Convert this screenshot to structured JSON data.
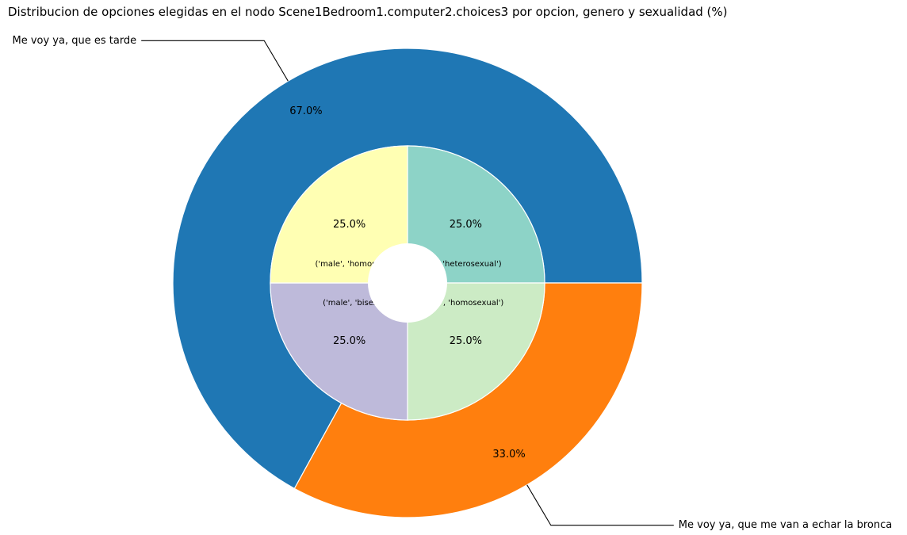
{
  "chart_data": {
    "type": "pie",
    "title": "Distribucion de opciones elegidas en el nodo Scene1Bedroom1.computer2.choices3 por opcion, genero y sexualidad (%)",
    "outer": {
      "slices": [
        {
          "label": "Me voy ya, que es tarde",
          "value": 67.0,
          "pct_label": "67.0%",
          "color": "#1f77b4"
        },
        {
          "label": "Me voy ya, que me van a echar la bronca",
          "value": 33.0,
          "pct_label": "33.0%",
          "color": "#ff7f0e"
        }
      ]
    },
    "inner": {
      "slices": [
        {
          "label": "('male', 'heterosexual')",
          "value": 25.0,
          "pct_label": "25.0%",
          "color": "#8dd3c7"
        },
        {
          "label": "('female', 'homosexual')",
          "value": 25.0,
          "pct_label": "25.0%",
          "color": "#ccebc5"
        },
        {
          "label": "('male', 'bisexual')",
          "value": 25.0,
          "pct_label": "25.0%",
          "color": "#bebada"
        },
        {
          "label": "('male', 'homosexual')",
          "value": 25.0,
          "pct_label": "25.0%",
          "color": "#ffffb3"
        }
      ]
    }
  }
}
